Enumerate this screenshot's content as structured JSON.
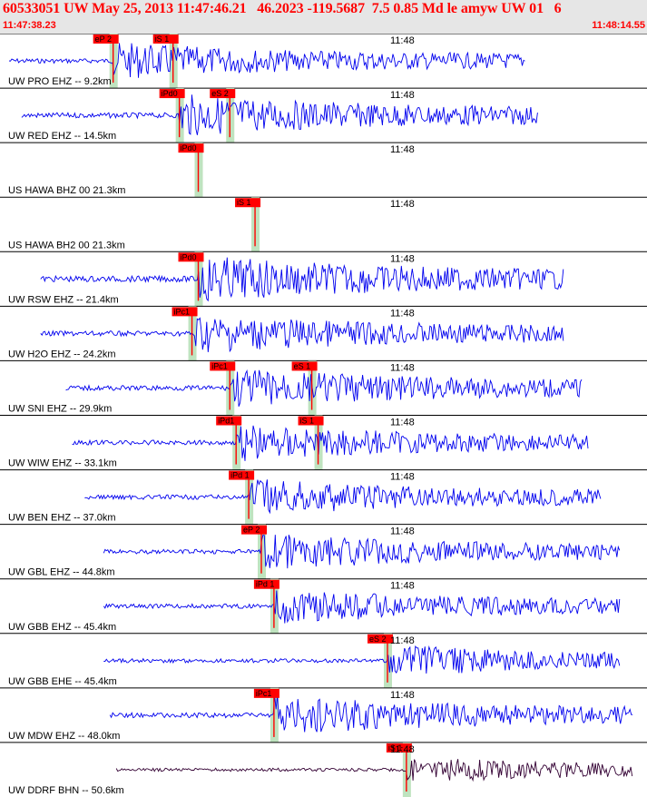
{
  "header": {
    "title": "60533051 UW May 25, 2013 11:47:46.21   46.2023 -119.5687  7.5 0.85 Md le amyw UW 01   6",
    "start_time": "11:47:38.23",
    "end_time": "11:48:14.55"
  },
  "time_marker": "11:48",
  "colors": {
    "trace": "#0000ee",
    "trace_dark": "#330033",
    "pick": "#ff0000",
    "pick_bar": "#bfe3bf",
    "text": "#000000"
  },
  "traces": [
    {
      "label": "UW PRO EHZ -- 9.2km",
      "picks": [
        {
          "name": "eP 2",
          "t": 0.165
        },
        {
          "name": "iS 1",
          "t": 0.26
        }
      ],
      "start": 0.0,
      "end": 0.82,
      "amp": 0.35,
      "color": "trace"
    },
    {
      "label": "UW RED EHZ -- 14.5km",
      "picks": [
        {
          "name": "iPd0",
          "t": 0.27
        },
        {
          "name": "eS 2",
          "t": 0.35
        }
      ],
      "start": 0.02,
      "end": 0.84,
      "amp": 0.4,
      "color": "trace"
    },
    {
      "label": "US HAWA BHZ 00 21.3km",
      "picks": [
        {
          "name": "iPd0",
          "t": 0.3
        }
      ],
      "start": 0,
      "end": 0,
      "amp": 0,
      "color": "trace"
    },
    {
      "label": "US HAWA BH2 00 21.3km",
      "picks": [
        {
          "name": "iS 1",
          "t": 0.39
        }
      ],
      "start": 0,
      "end": 0,
      "amp": 0,
      "color": "trace"
    },
    {
      "label": "UW RSW EHZ -- 21.4km",
      "picks": [
        {
          "name": "iPd0",
          "t": 0.3
        }
      ],
      "start": 0.05,
      "end": 0.88,
      "amp": 0.45,
      "color": "trace"
    },
    {
      "label": "UW H2O EHZ -- 24.2km",
      "picks": [
        {
          "name": "iPc1",
          "t": 0.29
        }
      ],
      "start": 0.05,
      "end": 0.88,
      "amp": 0.38,
      "color": "trace"
    },
    {
      "label": "UW SNI EHZ -- 29.9km",
      "picks": [
        {
          "name": "iPc1",
          "t": 0.35
        },
        {
          "name": "eS 1",
          "t": 0.48
        }
      ],
      "start": 0.09,
      "end": 0.91,
      "amp": 0.38,
      "color": "trace"
    },
    {
      "label": "UW WIW EHZ -- 33.1km",
      "picks": [
        {
          "name": "iPd1",
          "t": 0.36
        },
        {
          "name": "iS 1",
          "t": 0.49
        }
      ],
      "start": 0.1,
      "end": 0.92,
      "amp": 0.35,
      "color": "trace"
    },
    {
      "label": "UW BEN EHZ -- 37.0km",
      "picks": [
        {
          "name": "iPd 1",
          "t": 0.38
        }
      ],
      "start": 0.12,
      "end": 0.94,
      "amp": 0.35,
      "color": "trace"
    },
    {
      "label": "UW GBL EHZ -- 44.8km",
      "picks": [
        {
          "name": "eP 2",
          "t": 0.4
        }
      ],
      "start": 0.15,
      "end": 0.97,
      "amp": 0.35,
      "color": "trace"
    },
    {
      "label": "UW GBB EHZ -- 45.4km",
      "picks": [
        {
          "name": "iPd 1",
          "t": 0.42
        }
      ],
      "start": 0.15,
      "end": 0.97,
      "amp": 0.33,
      "color": "trace"
    },
    {
      "label": "UW GBB EHE -- 45.4km",
      "picks": [
        {
          "name": "eS 2",
          "t": 0.6
        }
      ],
      "start": 0.15,
      "end": 0.97,
      "amp": 0.3,
      "color": "trace"
    },
    {
      "label": "UW MDW EHZ -- 48.0km",
      "picks": [
        {
          "name": "iPc1",
          "t": 0.42
        }
      ],
      "start": 0.16,
      "end": 0.99,
      "amp": 0.38,
      "color": "trace"
    },
    {
      "label": "UW DDRF BHN -- 50.6km",
      "picks": [
        {
          "name": "iS 1",
          "t": 0.63
        }
      ],
      "start": 0.17,
      "end": 0.99,
      "amp": 0.25,
      "color": "trace_dark"
    }
  ]
}
